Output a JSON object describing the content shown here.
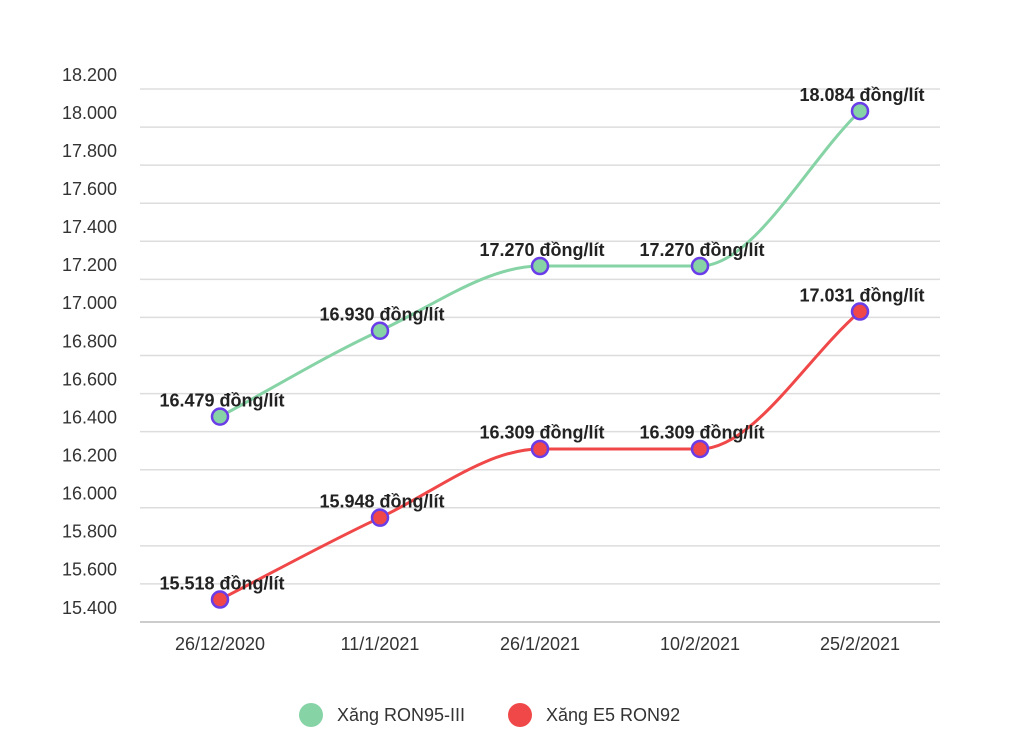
{
  "chart_data": {
    "type": "line",
    "categories": [
      "26/12/2020",
      "11/1/2021",
      "26/1/2021",
      "10/2/2021",
      "25/2/2021"
    ],
    "series": [
      {
        "name": "Xăng RON95-III",
        "color": "#86d3a6",
        "values": [
          16479,
          16930,
          17270,
          17270,
          18084
        ],
        "value_labels": [
          "16.479 đồng/lít",
          "16.930 đồng/lít",
          "17.270 đồng/lít",
          "17.270 đồng/lít",
          "18.084 đồng/lít"
        ]
      },
      {
        "name": "Xăng E5 RON92",
        "color": "#f04848",
        "values": [
          15518,
          15948,
          16309,
          16309,
          17031
        ],
        "value_labels": [
          "15.518 đồng/lít",
          "15.948 đồng/lít",
          "16.309 đồng/lít",
          "16.309 đồng/lít",
          "17.031 đồng/lít"
        ]
      }
    ],
    "ylim": [
      15400,
      18200
    ],
    "yticks": [
      {
        "value": 15400,
        "label": "15.400"
      },
      {
        "value": 15600,
        "label": "15.600"
      },
      {
        "value": 15800,
        "label": "15.800"
      },
      {
        "value": 16000,
        "label": "16.000"
      },
      {
        "value": 16200,
        "label": "16.200"
      },
      {
        "value": 16400,
        "label": "16.400"
      },
      {
        "value": 16600,
        "label": "16.600"
      },
      {
        "value": 16800,
        "label": "16.800"
      },
      {
        "value": 17000,
        "label": "17.000"
      },
      {
        "value": 17200,
        "label": "17.200"
      },
      {
        "value": 17400,
        "label": "17.400"
      },
      {
        "value": 17600,
        "label": "17.600"
      },
      {
        "value": 17800,
        "label": "17.800"
      },
      {
        "value": 18000,
        "label": "18.000"
      },
      {
        "value": 18200,
        "label": "18.200"
      }
    ],
    "grid": true
  }
}
